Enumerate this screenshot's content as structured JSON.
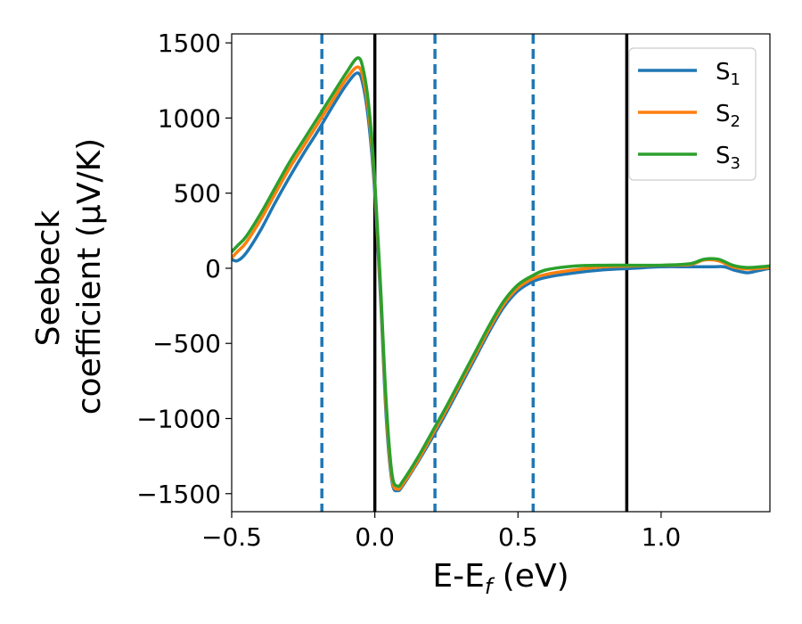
{
  "chart_data": {
    "type": "line",
    "title": "",
    "xlabel": {
      "main": "E-E",
      "sub": "f",
      "tail": " (eV)"
    },
    "ylabel": {
      "line1": "Seebeck",
      "line2": "coefficient  (μV/K)"
    },
    "xlim": [
      -0.5,
      1.38
    ],
    "ylim": [
      -1620,
      1560
    ],
    "xticks": [
      -0.5,
      0.0,
      0.5,
      1.0
    ],
    "xtick_labels": [
      "−0.5",
      "0.0",
      "0.5",
      "1.0"
    ],
    "yticks": [
      -1500,
      -1000,
      -500,
      0,
      500,
      1000,
      1500
    ],
    "ytick_labels": [
      "−1500",
      "−1000",
      "−500",
      "0",
      "500",
      "1000",
      "1500"
    ],
    "grid": false,
    "legend_position": "top-right",
    "vlines_solid": {
      "color": "#000000",
      "x": [
        0.0,
        0.88
      ]
    },
    "vlines_dashed": {
      "color": "#1f77b4",
      "x": [
        -0.185,
        0.21,
        0.553
      ]
    },
    "series": [
      {
        "name": "S",
        "sub": "1",
        "color": "#1f77b4",
        "x": [
          -0.5,
          -0.48,
          -0.45,
          -0.4,
          -0.35,
          -0.3,
          -0.25,
          -0.2,
          -0.15,
          -0.1,
          -0.06,
          -0.04,
          -0.02,
          0.0,
          0.02,
          0.04,
          0.06,
          0.08,
          0.1,
          0.15,
          0.2,
          0.25,
          0.3,
          0.35,
          0.4,
          0.45,
          0.5,
          0.55,
          0.6,
          0.7,
          0.8,
          0.9,
          1.0,
          1.1,
          1.18,
          1.22,
          1.26,
          1.3,
          1.33,
          1.38
        ],
        "y": [
          60,
          50,
          100,
          250,
          430,
          600,
          760,
          910,
          1070,
          1220,
          1300,
          1210,
          950,
          500,
          -200,
          -1000,
          -1420,
          -1480,
          -1440,
          -1290,
          -1130,
          -960,
          -780,
          -600,
          -420,
          -260,
          -150,
          -90,
          -60,
          -30,
          -10,
          0,
          10,
          10,
          10,
          10,
          -15,
          -30,
          -20,
          0
        ]
      },
      {
        "name": "S",
        "sub": "2",
        "color": "#ff7f0e",
        "x": [
          -0.5,
          -0.48,
          -0.45,
          -0.4,
          -0.35,
          -0.3,
          -0.25,
          -0.2,
          -0.15,
          -0.1,
          -0.06,
          -0.04,
          -0.02,
          0.0,
          0.02,
          0.04,
          0.06,
          0.08,
          0.1,
          0.15,
          0.2,
          0.25,
          0.3,
          0.35,
          0.4,
          0.45,
          0.5,
          0.55,
          0.6,
          0.7,
          0.8,
          0.9,
          1.0,
          1.1,
          1.15,
          1.2,
          1.25,
          1.3,
          1.38
        ],
        "y": [
          70,
          110,
          170,
          320,
          490,
          660,
          810,
          960,
          1110,
          1260,
          1340,
          1260,
          1010,
          550,
          -150,
          -950,
          -1400,
          -1470,
          -1430,
          -1280,
          -1110,
          -940,
          -760,
          -580,
          -400,
          -240,
          -130,
          -70,
          -40,
          -10,
          10,
          15,
          20,
          25,
          55,
          50,
          10,
          -5,
          5
        ]
      },
      {
        "name": "S",
        "sub": "3",
        "color": "#2ca02c",
        "x": [
          -0.5,
          -0.48,
          -0.45,
          -0.4,
          -0.35,
          -0.3,
          -0.25,
          -0.2,
          -0.15,
          -0.1,
          -0.06,
          -0.04,
          -0.02,
          0.0,
          0.02,
          0.04,
          0.06,
          0.08,
          0.1,
          0.15,
          0.2,
          0.25,
          0.3,
          0.35,
          0.4,
          0.45,
          0.5,
          0.55,
          0.6,
          0.7,
          0.8,
          0.9,
          1.0,
          1.1,
          1.15,
          1.2,
          1.25,
          1.3,
          1.38
        ],
        "y": [
          110,
          150,
          210,
          360,
          530,
          700,
          850,
          1000,
          1150,
          1300,
          1400,
          1320,
          1060,
          580,
          -120,
          -900,
          -1370,
          -1450,
          -1410,
          -1260,
          -1090,
          -920,
          -740,
          -560,
          -380,
          -220,
          -110,
          -50,
          -10,
          15,
          20,
          20,
          20,
          30,
          60,
          60,
          20,
          5,
          15
        ]
      }
    ]
  }
}
